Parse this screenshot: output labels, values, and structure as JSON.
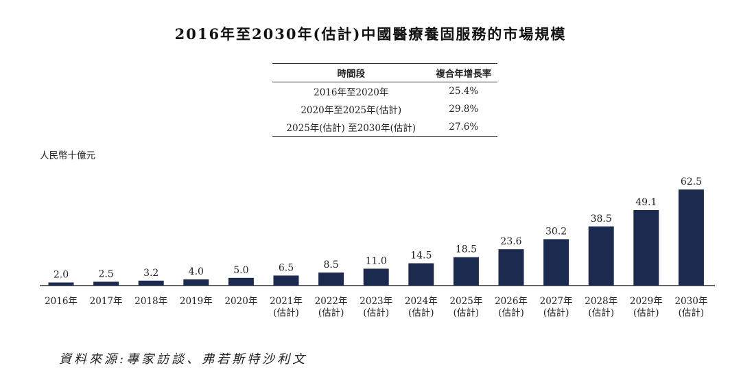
{
  "title": "2016年至2030年(估計)中國醫療養固服務的市場規模",
  "cagr_table": {
    "headers": [
      "時間段",
      "複合年增長率"
    ],
    "rows": [
      {
        "period": "2016年至2020年",
        "rate": "25.4%"
      },
      {
        "period": "2020年至2025年(估計)",
        "rate": "29.8%"
      },
      {
        "period": "2025年(估計) 至2030年(估計)",
        "rate": "27.6%"
      }
    ]
  },
  "source": "資料來源:專家訪談、弗若斯特沙利文",
  "colors": {
    "bar": "#1b2a4e",
    "axis": "#333333"
  },
  "chart_data": {
    "type": "bar",
    "ylabel": "人民幣十億元",
    "categories": [
      "2016年",
      "2017年",
      "2018年",
      "2019年",
      "2020年",
      "2021年\n(估計)",
      "2022年\n(估計)",
      "2023年\n(估計)",
      "2024年\n(估計)",
      "2025年\n(估計)",
      "2026年\n(估計)",
      "2027年\n(估計)",
      "2028年\n(估計)",
      "2029年\n(估計)",
      "2030年\n(估計)"
    ],
    "values": [
      2.0,
      2.5,
      3.2,
      4.0,
      5.0,
      6.5,
      8.5,
      11.0,
      14.5,
      18.5,
      23.6,
      30.2,
      38.5,
      49.1,
      62.5
    ],
    "data_labels": [
      "2.0",
      "2.5",
      "3.2",
      "4.0",
      "5.0",
      "6.5",
      "8.5",
      "11.0",
      "14.5",
      "18.5",
      "23.6",
      "30.2",
      "38.5",
      "49.1",
      "62.5"
    ],
    "ylim": [
      0,
      62.5
    ],
    "grid": false
  }
}
